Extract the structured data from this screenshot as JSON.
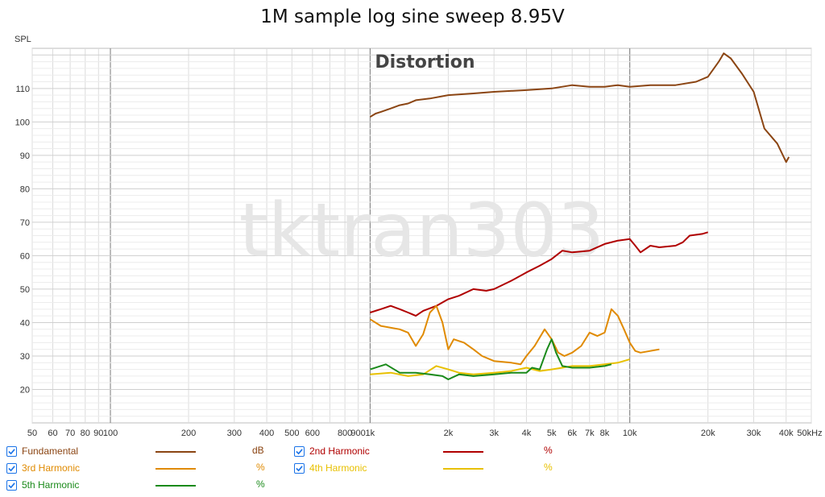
{
  "chart_data": {
    "type": "line",
    "title": "1M sample log sine sweep 8.95V",
    "annotation": "Distortion",
    "watermark": "tktran303",
    "ylabel": "SPL",
    "xlabel_unit": "kHz",
    "x_scale": "log",
    "xlim": [
      50,
      50000
    ],
    "ylim": [
      10,
      122
    ],
    "grid": true,
    "x_ticks": [
      {
        "v": 50,
        "label": "50"
      },
      {
        "v": 60,
        "label": "60"
      },
      {
        "v": 70,
        "label": "70"
      },
      {
        "v": 80,
        "label": "80"
      },
      {
        "v": 90,
        "label": "90"
      },
      {
        "v": 100,
        "label": "100"
      },
      {
        "v": 200,
        "label": "200"
      },
      {
        "v": 300,
        "label": "300"
      },
      {
        "v": 400,
        "label": "400"
      },
      {
        "v": 500,
        "label": "500"
      },
      {
        "v": 600,
        "label": "600"
      },
      {
        "v": 800,
        "label": "800"
      },
      {
        "v": 900,
        "label": "900"
      },
      {
        "v": 1000,
        "label": "1k"
      },
      {
        "v": 2000,
        "label": "2k"
      },
      {
        "v": 3000,
        "label": "3k"
      },
      {
        "v": 4000,
        "label": "4k"
      },
      {
        "v": 5000,
        "label": "5k"
      },
      {
        "v": 6000,
        "label": "6k"
      },
      {
        "v": 7000,
        "label": "7k"
      },
      {
        "v": 8000,
        "label": "8k"
      },
      {
        "v": 10000,
        "label": "10k"
      },
      {
        "v": 20000,
        "label": "20k"
      },
      {
        "v": 30000,
        "label": "30k"
      },
      {
        "v": 40000,
        "label": "40k"
      },
      {
        "v": 50000,
        "label": "50kHz"
      }
    ],
    "y_ticks": [
      {
        "v": 20,
        "label": "20"
      },
      {
        "v": 30,
        "label": "30"
      },
      {
        "v": 40,
        "label": "40"
      },
      {
        "v": 50,
        "label": "50"
      },
      {
        "v": 60,
        "label": "60"
      },
      {
        "v": 70,
        "label": "70"
      },
      {
        "v": 80,
        "label": "80"
      },
      {
        "v": 90,
        "label": "90"
      },
      {
        "v": 100,
        "label": "100"
      },
      {
        "v": 110,
        "label": "110"
      }
    ],
    "series": [
      {
        "name": "Fundamental",
        "unit": "dB",
        "color": "#8b4513",
        "points": [
          [
            1000,
            101.5
          ],
          [
            1050,
            102.5
          ],
          [
            1100,
            103
          ],
          [
            1200,
            104
          ],
          [
            1300,
            105
          ],
          [
            1400,
            105.5
          ],
          [
            1500,
            106.5
          ],
          [
            1700,
            107
          ],
          [
            2000,
            108
          ],
          [
            2500,
            108.5
          ],
          [
            3000,
            109
          ],
          [
            4000,
            109.5
          ],
          [
            5000,
            110
          ],
          [
            6000,
            111
          ],
          [
            7000,
            110.5
          ],
          [
            8000,
            110.5
          ],
          [
            9000,
            111
          ],
          [
            10000,
            110.5
          ],
          [
            12000,
            111
          ],
          [
            15000,
            111
          ],
          [
            18000,
            112
          ],
          [
            20000,
            113.5
          ],
          [
            22000,
            118
          ],
          [
            23000,
            120.5
          ],
          [
            24500,
            119
          ],
          [
            27000,
            114.5
          ],
          [
            30000,
            109
          ],
          [
            33000,
            98
          ],
          [
            37000,
            93.5
          ],
          [
            40000,
            88
          ],
          [
            41000,
            89.5
          ]
        ]
      },
      {
        "name": "2nd Harmonic",
        "unit": "%",
        "color": "#b00000",
        "points": [
          [
            1000,
            43
          ],
          [
            1100,
            44
          ],
          [
            1200,
            45
          ],
          [
            1300,
            44
          ],
          [
            1400,
            43
          ],
          [
            1500,
            42
          ],
          [
            1600,
            43.5
          ],
          [
            1800,
            45
          ],
          [
            2000,
            47
          ],
          [
            2200,
            48
          ],
          [
            2500,
            50
          ],
          [
            2800,
            49.5
          ],
          [
            3000,
            50
          ],
          [
            3500,
            52.5
          ],
          [
            4000,
            55
          ],
          [
            4500,
            57
          ],
          [
            5000,
            59
          ],
          [
            5500,
            61.5
          ],
          [
            6000,
            61
          ],
          [
            7000,
            61.5
          ],
          [
            8000,
            63.5
          ],
          [
            9000,
            64.5
          ],
          [
            10000,
            65
          ],
          [
            10500,
            63
          ],
          [
            11000,
            61
          ],
          [
            12000,
            63
          ],
          [
            13000,
            62.5
          ],
          [
            15000,
            63
          ],
          [
            16000,
            64
          ],
          [
            17000,
            66
          ],
          [
            19000,
            66.5
          ],
          [
            20000,
            67
          ]
        ]
      },
      {
        "name": "3rd Harmonic",
        "unit": "%",
        "color": "#e08a00",
        "points": [
          [
            1000,
            41
          ],
          [
            1100,
            39
          ],
          [
            1300,
            38
          ],
          [
            1400,
            37
          ],
          [
            1500,
            33
          ],
          [
            1600,
            36.5
          ],
          [
            1700,
            43
          ],
          [
            1800,
            45
          ],
          [
            1900,
            40
          ],
          [
            2000,
            32
          ],
          [
            2100,
            35
          ],
          [
            2300,
            34
          ],
          [
            2500,
            32
          ],
          [
            2700,
            30
          ],
          [
            3000,
            28.5
          ],
          [
            3500,
            28
          ],
          [
            3800,
            27.5
          ],
          [
            4000,
            30
          ],
          [
            4300,
            33
          ],
          [
            4700,
            38
          ],
          [
            5000,
            35
          ],
          [
            5300,
            31
          ],
          [
            5600,
            30
          ],
          [
            6000,
            31
          ],
          [
            6500,
            33
          ],
          [
            7000,
            37
          ],
          [
            7500,
            36
          ],
          [
            8000,
            37
          ],
          [
            8500,
            44
          ],
          [
            9000,
            42
          ],
          [
            9500,
            38
          ],
          [
            10000,
            34
          ],
          [
            10500,
            31.5
          ],
          [
            11000,
            31
          ],
          [
            12000,
            31.5
          ],
          [
            13000,
            32
          ]
        ]
      },
      {
        "name": "4th Harmonic",
        "unit": "%",
        "color": "#e8c000",
        "points": [
          [
            1000,
            24.5
          ],
          [
            1200,
            25
          ],
          [
            1400,
            24
          ],
          [
            1600,
            24.5
          ],
          [
            1800,
            27
          ],
          [
            2000,
            26
          ],
          [
            2200,
            25
          ],
          [
            2500,
            24.5
          ],
          [
            3000,
            25
          ],
          [
            3500,
            25.5
          ],
          [
            4000,
            26.5
          ],
          [
            4500,
            25.5
          ],
          [
            5000,
            26
          ],
          [
            5500,
            26.5
          ],
          [
            6000,
            27
          ],
          [
            7000,
            27
          ],
          [
            8000,
            27.5
          ],
          [
            9000,
            28
          ],
          [
            10000,
            29
          ]
        ]
      },
      {
        "name": "5th Harmonic",
        "unit": "%",
        "color": "#1a8a1a",
        "points": [
          [
            1000,
            26
          ],
          [
            1150,
            27.5
          ],
          [
            1300,
            25
          ],
          [
            1500,
            25
          ],
          [
            1700,
            24.5
          ],
          [
            1900,
            24
          ],
          [
            2000,
            23
          ],
          [
            2200,
            24.5
          ],
          [
            2500,
            24
          ],
          [
            3000,
            24.5
          ],
          [
            3500,
            25
          ],
          [
            4000,
            25
          ],
          [
            4200,
            26.5
          ],
          [
            4500,
            26
          ],
          [
            4800,
            32
          ],
          [
            5000,
            35
          ],
          [
            5200,
            31
          ],
          [
            5500,
            27
          ],
          [
            6000,
            26.5
          ],
          [
            7000,
            26.5
          ],
          [
            8000,
            27
          ],
          [
            8500,
            27.5
          ]
        ]
      }
    ]
  },
  "legend": [
    {
      "label": "Fundamental",
      "unit": "dB",
      "checked": true
    },
    {
      "label": "2nd Harmonic",
      "unit": "%",
      "checked": true
    },
    {
      "label": "3rd Harmonic",
      "unit": "%",
      "checked": true
    },
    {
      "label": "4th Harmonic",
      "unit": "%",
      "checked": true
    },
    {
      "label": "5th Harmonic",
      "unit": "%",
      "checked": true
    }
  ]
}
